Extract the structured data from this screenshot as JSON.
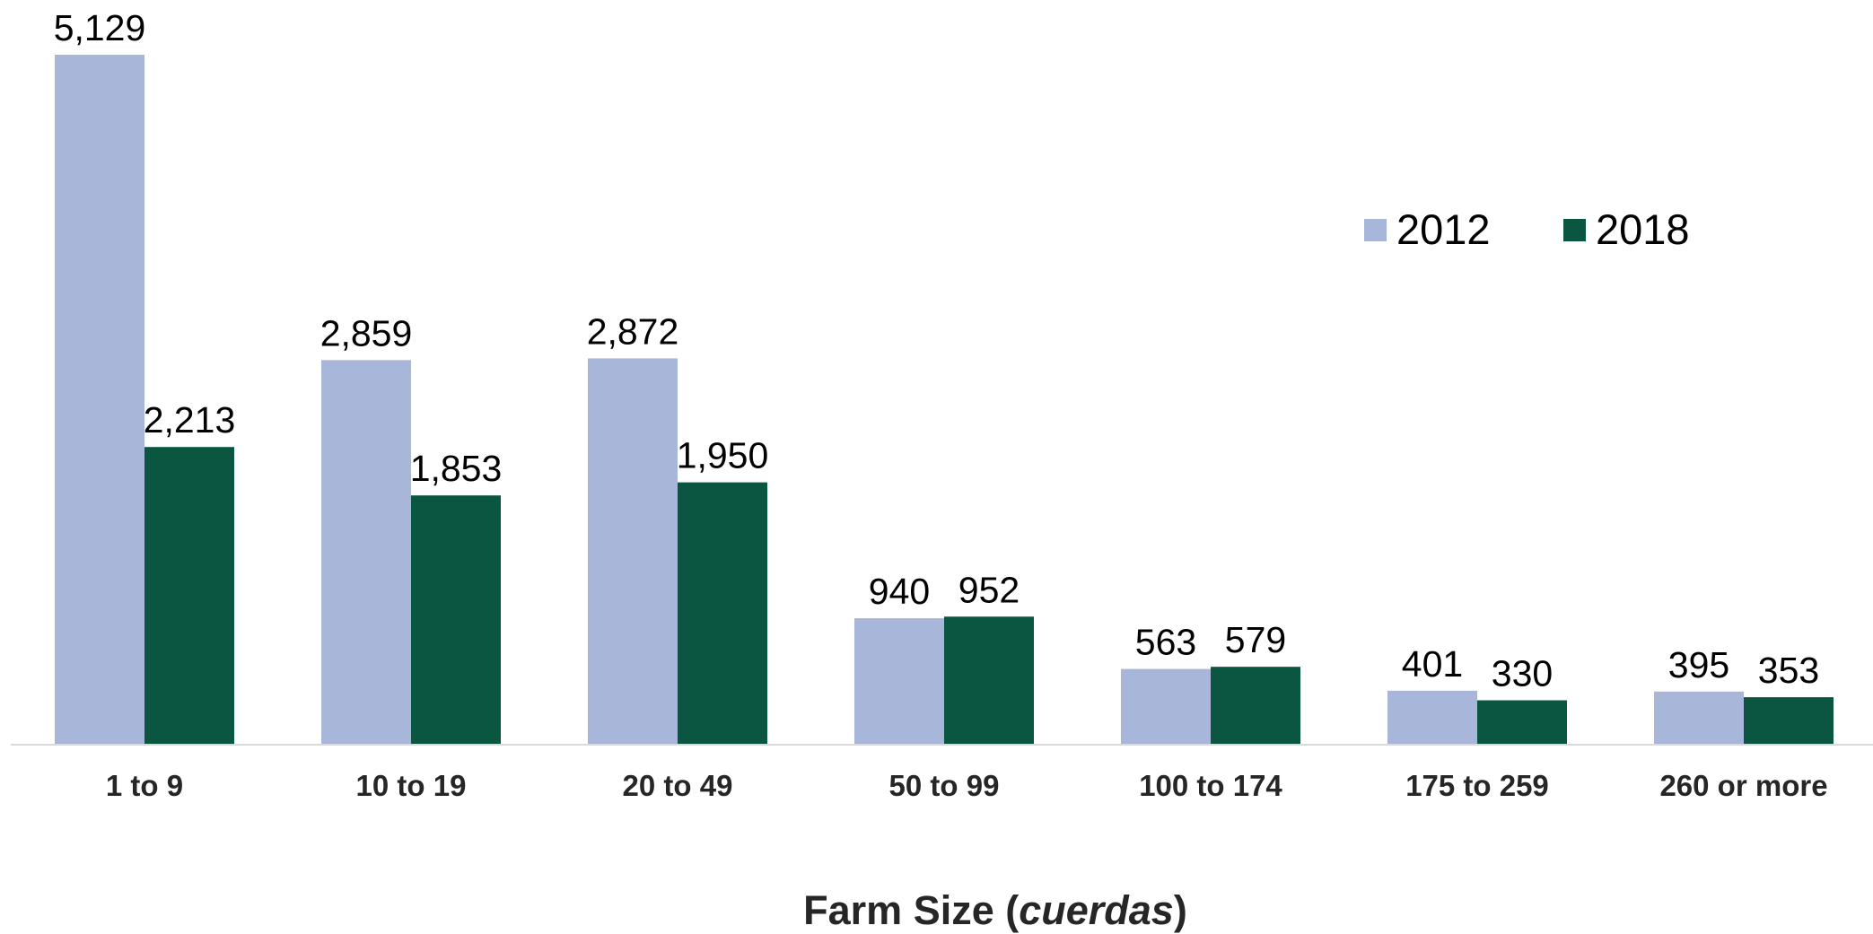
{
  "chart_data": {
    "type": "bar",
    "categories": [
      "1 to 9",
      "10 to 19",
      "20 to 49",
      "50 to 99",
      "100 to 174",
      "175 to 259",
      "260 or more"
    ],
    "series": [
      {
        "name": "2012",
        "color": "#a8b6da",
        "values": [
          5129,
          2859,
          2872,
          940,
          563,
          401,
          395
        ],
        "labels": [
          "5,129",
          "2,859",
          "2,872",
          "940",
          "563",
          "401",
          "395"
        ]
      },
      {
        "name": "2018",
        "color": "#0b5640",
        "values": [
          2213,
          1853,
          1950,
          952,
          579,
          330,
          353
        ],
        "labels": [
          "2,213",
          "1,853",
          "1,950",
          "952",
          "579",
          "330",
          "353"
        ]
      }
    ],
    "xlabel": {
      "prefix": "Farm Size (",
      "italic": "cuerdas",
      "suffix": ")"
    },
    "ylim": [
      0,
      5129
    ],
    "grid": false,
    "legend_position": "top-right"
  }
}
